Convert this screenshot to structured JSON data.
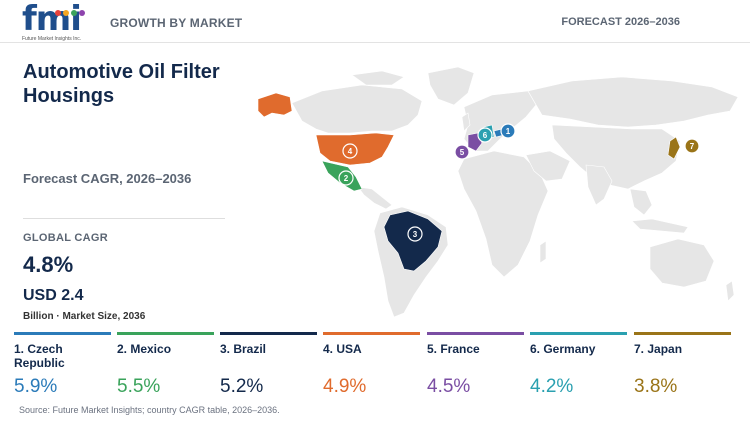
{
  "header": {
    "logo_text": "fmi",
    "logo_tagline": "Future Market Insights Inc.",
    "section": "GROWTH BY MARKET",
    "forecast": "FORECAST 2026–2036"
  },
  "summary": {
    "title": "Automotive Oil Filter Housings",
    "forecast_label": "Forecast CAGR, 2026–2036",
    "global_cagr_label": "GLOBAL CAGR",
    "global_cagr": "4.8%",
    "market_size": "USD 2.4",
    "market_note": "Billion · Market Size, 2036"
  },
  "countries": [
    {
      "rank": "1",
      "name": "1. Czech Republic",
      "cagr": "5.9%",
      "color": "#2b7bb9"
    },
    {
      "rank": "2",
      "name": "2. Mexico",
      "cagr": "5.5%",
      "color": "#3aa35b"
    },
    {
      "rank": "3",
      "name": "3. Brazil",
      "cagr": "5.2%",
      "color": "#13294b"
    },
    {
      "rank": "4",
      "name": "4. USA",
      "cagr": "4.9%",
      "color": "#e06b2d"
    },
    {
      "rank": "5",
      "name": "5. France",
      "cagr": "4.5%",
      "color": "#7a4ea3"
    },
    {
      "rank": "6",
      "name": "6. Germany",
      "cagr": "4.2%",
      "color": "#2aa0b0"
    },
    {
      "rank": "7",
      "name": "7. Japan",
      "cagr": "3.8%",
      "color": "#9a7418"
    }
  ],
  "map": {
    "land_color": "#e6e6e6",
    "border_color": "#ffffff"
  },
  "source": "Source: Future Market Insights; country CAGR table, 2026–2036."
}
